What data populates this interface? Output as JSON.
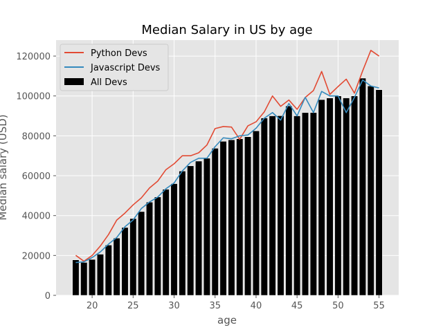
{
  "chart_data": {
    "type": "bar",
    "title": "Median Salary in US by age",
    "xlabel": "age",
    "ylabel": "Median salary (USD)",
    "xlim": [
      15.6,
      57.4
    ],
    "ylim": [
      0,
      128000
    ],
    "xticks": [
      20,
      25,
      30,
      35,
      40,
      45,
      50,
      55
    ],
    "yticks": [
      0,
      20000,
      40000,
      60000,
      80000,
      100000,
      120000
    ],
    "grid": true,
    "legend_position": "top-left",
    "x": [
      18,
      19,
      20,
      21,
      22,
      23,
      24,
      25,
      26,
      27,
      28,
      29,
      30,
      31,
      32,
      33,
      34,
      35,
      36,
      37,
      38,
      39,
      40,
      41,
      42,
      43,
      44,
      45,
      46,
      47,
      48,
      49,
      50,
      51,
      52,
      53,
      54,
      55
    ],
    "bars": {
      "name": "All Devs",
      "color": "#000000",
      "values": [
        17784,
        16500,
        18012,
        20628,
        25206,
        28700,
        34012,
        38500,
        42000,
        46752,
        49320,
        53200,
        56000,
        62316,
        64928,
        67317,
        68748,
        73752,
        77232,
        78000,
        78508,
        79536,
        82488,
        88935,
        90000,
        90056,
        95000,
        90000,
        91633,
        91660,
        98150,
        98964,
        100000,
        98988,
        100000,
        108923,
        105000,
        103117
      ]
    },
    "series": [
      {
        "name": "Python Devs",
        "color": "#E24A33",
        "values": [
          20046,
          17100,
          20000,
          24744,
          30500,
          37732,
          41247,
          45372,
          48876,
          53850,
          57287,
          63016,
          65998,
          70003,
          70000,
          71496,
          75370,
          83640,
          84666,
          84392,
          78254,
          85000,
          87038,
          91991,
          100000,
          94796,
          97962,
          93302,
          99240,
          102736,
          112285,
          100771,
          104708,
          108423,
          101407,
          112542,
          122870,
          120000
        ]
      },
      {
        "name": "Javascript Devs",
        "color": "#348ABD",
        "values": [
          16446,
          16791,
          18942,
          21780,
          25704,
          29000,
          34372,
          37810,
          43515,
          46823,
          49293,
          53437,
          56373,
          62375,
          66674,
          68745,
          68746,
          74583,
          79000,
          78508,
          79996,
          80403,
          83820,
          88833,
          91660,
          87892,
          96243,
          90000,
          99313,
          91660,
          102264,
          100000,
          100000,
          91660,
          99240,
          108000,
          105000,
          104000
        ]
      }
    ]
  }
}
